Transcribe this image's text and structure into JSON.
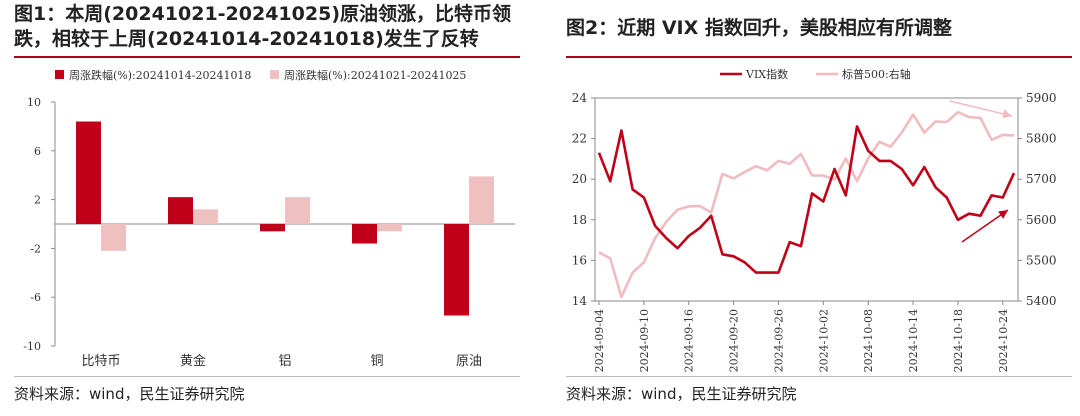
{
  "left": {
    "title": "图1：本周(20241021-20241025)原油领涨，比特币领跌，相较于上周(20241014-20241018)发生了反转",
    "source": "资料来源：wind，民生证券研究院"
  },
  "right": {
    "title": "图2：近期 VIX 指数回升，美股相应有所调整",
    "source": "资料来源：wind，民生证券研究院"
  },
  "chart_data": [
    {
      "type": "bar",
      "categories": [
        "比特币",
        "黄金",
        "铝",
        "铜",
        "原油"
      ],
      "series": [
        {
          "name": "周涨跌幅(%):20241014-20241018",
          "values": [
            8.4,
            2.2,
            -0.6,
            -1.6,
            -7.5
          ],
          "color": "#c00018"
        },
        {
          "name": "周涨跌幅(%):20241021-20241025",
          "values": [
            -2.2,
            1.2,
            2.2,
            -0.6,
            3.9
          ],
          "color": "#eec0c0"
        }
      ],
      "yticks": [
        10,
        6,
        2,
        -2,
        -6,
        -10
      ],
      "ylim": [
        -10,
        10
      ],
      "legend": "top"
    },
    {
      "type": "line",
      "x": [
        "2024-09-04",
        "2024-09-05",
        "2024-09-06",
        "2024-09-09",
        "2024-09-10",
        "2024-09-11",
        "2024-09-12",
        "2024-09-13",
        "2024-09-16",
        "2024-09-17",
        "2024-09-18",
        "2024-09-19",
        "2024-09-20",
        "2024-09-23",
        "2024-09-24",
        "2024-09-25",
        "2024-09-26",
        "2024-09-27",
        "2024-09-30",
        "2024-10-01",
        "2024-10-02",
        "2024-10-03",
        "2024-10-04",
        "2024-10-07",
        "2024-10-08",
        "2024-10-09",
        "2024-10-10",
        "2024-10-11",
        "2024-10-14",
        "2024-10-15",
        "2024-10-16",
        "2024-10-17",
        "2024-10-18",
        "2024-10-21",
        "2024-10-22",
        "2024-10-23",
        "2024-10-24",
        "2024-10-25"
      ],
      "xticks": [
        "2024-09-04",
        "2024-09-10",
        "2024-09-16",
        "2024-09-20",
        "2024-09-26",
        "2024-10-02",
        "2024-10-08",
        "2024-10-14",
        "2024-10-18",
        "2024-10-24"
      ],
      "series": [
        {
          "name": "VIX指数",
          "axis": "left",
          "color": "#c00018",
          "values": [
            21.3,
            19.9,
            22.4,
            19.5,
            19.1,
            17.7,
            17.1,
            16.6,
            17.2,
            17.6,
            18.2,
            16.3,
            16.2,
            15.9,
            15.4,
            15.4,
            15.4,
            16.9,
            16.7,
            19.3,
            18.9,
            20.5,
            19.2,
            22.6,
            21.4,
            20.9,
            20.9,
            20.5,
            19.7,
            20.6,
            19.6,
            19.1,
            18.0,
            18.3,
            18.2,
            19.2,
            19.1,
            20.3
          ]
        },
        {
          "name": "标普500:右轴",
          "axis": "right",
          "color": "#f0bcc0",
          "values": [
            5520,
            5505,
            5410,
            5470,
            5495,
            5555,
            5595,
            5625,
            5633,
            5634,
            5618,
            5713,
            5702,
            5718,
            5732,
            5722,
            5745,
            5738,
            5762,
            5709,
            5709,
            5699,
            5751,
            5695,
            5751,
            5792,
            5780,
            5815,
            5859,
            5815,
            5842,
            5841,
            5865,
            5853,
            5851,
            5797,
            5809,
            5808
          ]
        }
      ],
      "ylim_left": [
        14,
        24
      ],
      "yticks_left": [
        14,
        16,
        18,
        20,
        22,
        24
      ],
      "ylim_right": [
        5400,
        5900
      ],
      "yticks_right": [
        5400,
        5500,
        5600,
        5700,
        5800,
        5900
      ],
      "legend": "top"
    }
  ]
}
